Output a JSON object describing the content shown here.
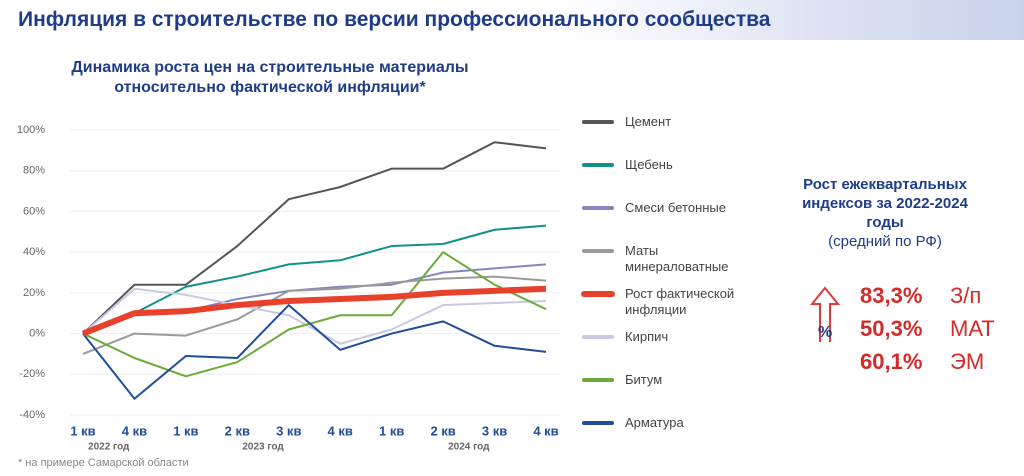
{
  "header": {
    "title": "Инфляция в строительстве по версии профессионального сообщества"
  },
  "chart_data": {
    "type": "line",
    "title": "Динамика роста цен на строительные материалы относительно фактической инфляции*",
    "categories": [
      "1 кв",
      "4 кв",
      "1 кв",
      "2 кв",
      "3 кв",
      "4 кв",
      "1 кв",
      "2 кв",
      "3 кв",
      "4 кв"
    ],
    "year_labels": [
      "2022 год",
      "2023 год",
      "2024 год"
    ],
    "ylim": [
      -40,
      100
    ],
    "yticks": [
      {
        "value": -40,
        "label": "-40%"
      },
      {
        "value": -20,
        "label": "-20%"
      },
      {
        "value": 0,
        "label": "0%"
      },
      {
        "value": 20,
        "label": "20%"
      },
      {
        "value": 40,
        "label": "40%"
      },
      {
        "value": 60,
        "label": "60%"
      },
      {
        "value": 80,
        "label": "80%"
      },
      {
        "value": 100,
        "label": "100%"
      }
    ],
    "grid": true,
    "series": [
      {
        "name": "Цемент",
        "color": "#555555",
        "values": [
          0,
          24,
          24,
          43,
          66,
          72,
          81,
          81,
          94,
          91
        ]
      },
      {
        "name": "Щебень",
        "color": "#12908a",
        "values": [
          0,
          10,
          23,
          28,
          34,
          36,
          43,
          44,
          51,
          53
        ]
      },
      {
        "name": "Смеси бетонные",
        "color": "#8585c2",
        "values": [
          0,
          10,
          11,
          17,
          21,
          23,
          24,
          30,
          32,
          34
        ]
      },
      {
        "name": "Маты минераловатные",
        "color": "#9a9a9a",
        "values": [
          -10,
          0,
          -1,
          7,
          21,
          22,
          25,
          27,
          28,
          26
        ]
      },
      {
        "name": "Рост фактической инфляции",
        "color": "#e8402a",
        "values": [
          0,
          10,
          11,
          14,
          16,
          17,
          18,
          20,
          21,
          22
        ]
      },
      {
        "name": "Кирпич",
        "color": "#c9c9e3",
        "values": [
          0,
          22,
          19,
          14,
          9,
          -5,
          2,
          14,
          15,
          16
        ]
      },
      {
        "name": "Битум",
        "color": "#6aab3c",
        "values": [
          0,
          -12,
          -21,
          -14,
          2,
          9,
          9,
          40,
          24,
          12
        ]
      },
      {
        "name": "Арматура",
        "color": "#1f4e9a",
        "values": [
          0,
          -32,
          -11,
          -12,
          14,
          -8,
          0,
          6,
          -6,
          -9
        ]
      }
    ],
    "footnote": "* на примере Самарской области"
  },
  "panel": {
    "title": "Рост ежеквартальных индексов за 2022-2024 годы",
    "subtitle": "(средний по РФ)",
    "stats": [
      {
        "value": "83,3%",
        "label": "З/п"
      },
      {
        "value": "50,3%",
        "label": "МАТ"
      },
      {
        "value": "60,1%",
        "label": "ЭМ"
      }
    ]
  }
}
